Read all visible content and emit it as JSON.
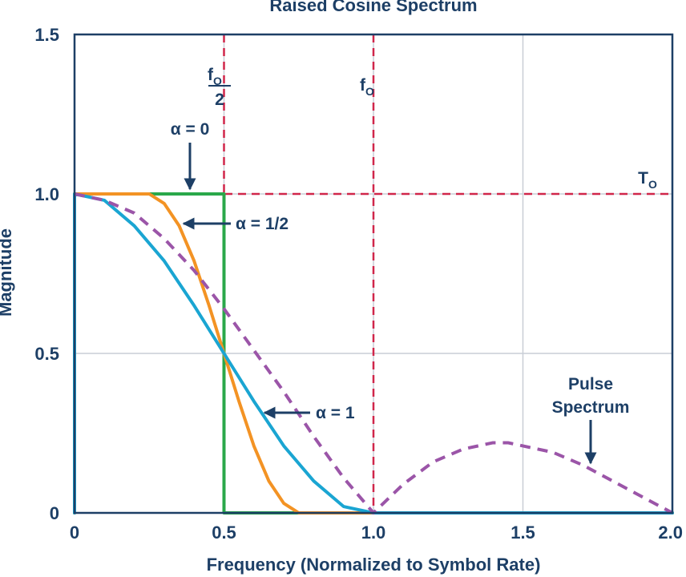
{
  "chart_data": {
    "type": "line",
    "title": "Raised Cosine Spectrum",
    "xlabel": "Frequency (Normalized to Symbol Rate)",
    "ylabel": "Magnitude",
    "xlim": [
      0,
      2
    ],
    "ylim": [
      0,
      1.5
    ],
    "x_ticks": [
      "0",
      "0.5",
      "1.0",
      "1.5",
      "2.0"
    ],
    "y_ticks": [
      "0",
      "0.5",
      "1.0",
      "1.5"
    ],
    "grid": true,
    "colors": {
      "axis": "#1d3f66",
      "grid": "#c9ced6",
      "alpha0": "#2aa84a",
      "alpha_half": "#f39324",
      "alpha1": "#1aa5d2",
      "pulse": "#9b55a8",
      "guide": "#d0264a"
    },
    "series": [
      {
        "key": "alpha0",
        "x": [
          0,
          0,
          0.5,
          0.5,
          2.0
        ],
        "y": [
          0,
          1.0,
          1.0,
          0,
          0
        ]
      },
      {
        "key": "alpha_half",
        "x": [
          0,
          0,
          0.25,
          0.3,
          0.35,
          0.4,
          0.45,
          0.5,
          0.55,
          0.6,
          0.65,
          0.7,
          0.75,
          2.0
        ],
        "y": [
          0,
          1.0,
          1.0,
          0.97,
          0.9,
          0.79,
          0.65,
          0.5,
          0.35,
          0.21,
          0.1,
          0.03,
          0,
          0
        ]
      },
      {
        "key": "alpha1",
        "x": [
          0,
          0,
          0.1,
          0.2,
          0.3,
          0.4,
          0.5,
          0.6,
          0.7,
          0.8,
          0.9,
          1.0,
          2.0
        ],
        "y": [
          0,
          1.0,
          0.98,
          0.9,
          0.79,
          0.65,
          0.5,
          0.35,
          0.21,
          0.1,
          0.02,
          0,
          0
        ]
      },
      {
        "key": "pulse",
        "dashed": true,
        "x": [
          0,
          0.1,
          0.2,
          0.3,
          0.4,
          0.5,
          0.6,
          0.7,
          0.8,
          0.9,
          1.0,
          1.1,
          1.2,
          1.3,
          1.4,
          1.45,
          1.5,
          1.6,
          1.7,
          1.8,
          1.9,
          2.0
        ],
        "y": [
          1.0,
          0.98,
          0.94,
          0.86,
          0.76,
          0.64,
          0.51,
          0.38,
          0.24,
          0.11,
          0,
          0.09,
          0.16,
          0.2,
          0.22,
          0.22,
          0.21,
          0.19,
          0.15,
          0.1,
          0.05,
          0
        ]
      }
    ],
    "guides": [
      {
        "axis": "x",
        "value": 0.5
      },
      {
        "axis": "x",
        "value": 1.0
      },
      {
        "axis": "y",
        "value": 1.0
      }
    ],
    "annotations": {
      "fo_half_num": "f",
      "fo_half_sub": "O",
      "fo_half_den": "2",
      "fo": "f",
      "fo_sub": "O",
      "to": "T",
      "to_sub": "O",
      "alpha0": "α = 0",
      "alpha_half": "α = 1/2",
      "alpha1": "α = 1",
      "pulse_line1": "Pulse",
      "pulse_line2": "Spectrum"
    }
  }
}
